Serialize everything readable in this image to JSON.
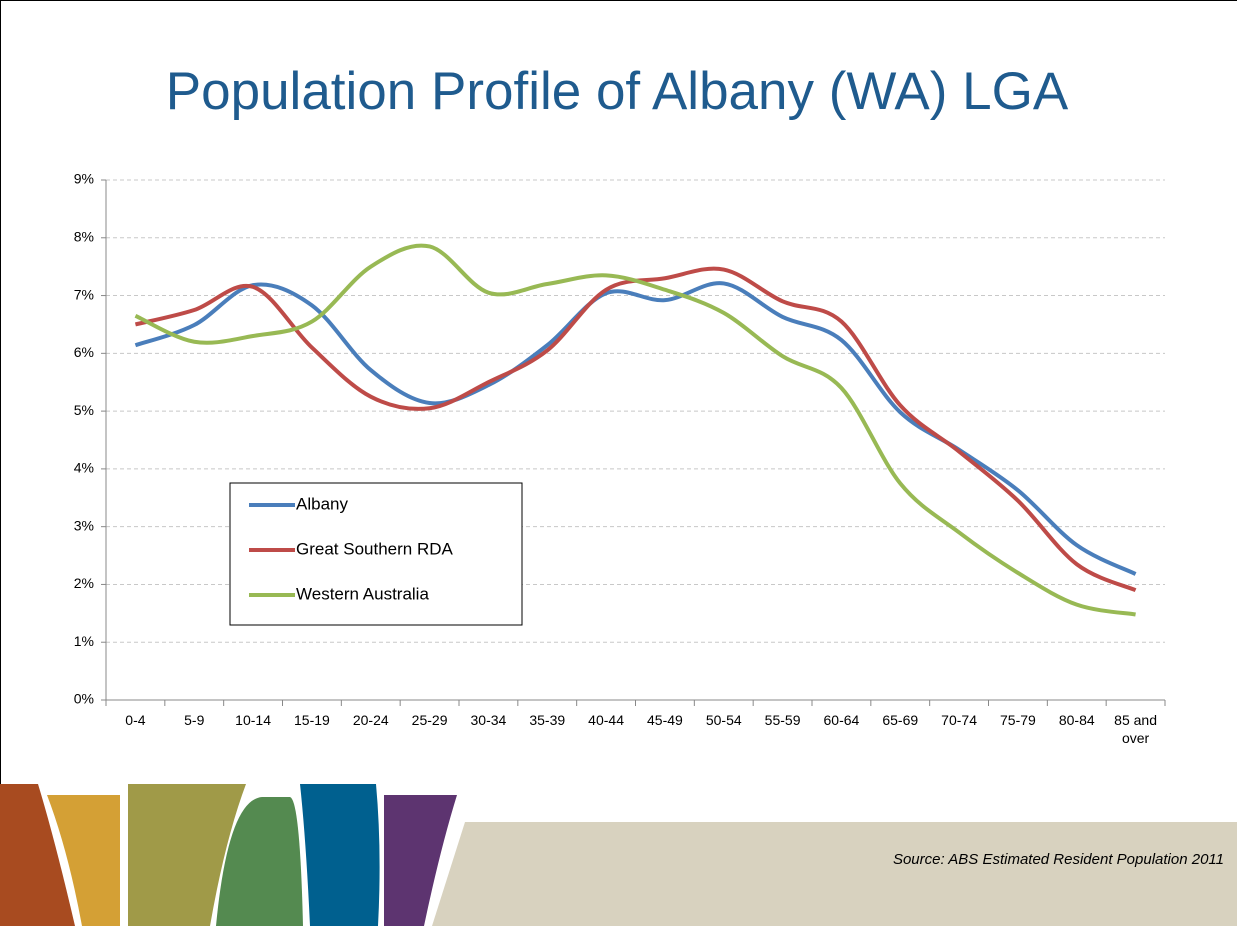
{
  "chart_data": {
    "type": "line",
    "title": "Population Profile of Albany (WA) LGA",
    "source": "Source: ABS Estimated Resident Population 2011",
    "categories": [
      "0-4",
      "5-9",
      "10-14",
      "15-19",
      "20-24",
      "25-29",
      "30-34",
      "35-39",
      "40-44",
      "45-49",
      "50-54",
      "55-59",
      "60-64",
      "65-69",
      "70-74",
      "75-79",
      "80-84",
      "85 and over"
    ],
    "series": [
      {
        "name": "Albany",
        "color": "#4a7ebb",
        "values": [
          6.14,
          6.49,
          7.18,
          6.83,
          5.71,
          5.14,
          5.45,
          6.14,
          7.04,
          6.92,
          7.21,
          6.63,
          6.23,
          4.98,
          4.33,
          3.63,
          2.68,
          2.18
        ]
      },
      {
        "name": "Great Southern RDA",
        "color": "#be4b48",
        "values": [
          6.5,
          6.75,
          7.15,
          6.1,
          5.25,
          5.05,
          5.5,
          6.05,
          7.1,
          7.3,
          7.45,
          6.9,
          6.55,
          5.1,
          4.3,
          3.45,
          2.35,
          1.9
        ]
      },
      {
        "name": "Western Australia",
        "color": "#98b954",
        "values": [
          6.65,
          6.2,
          6.3,
          6.55,
          7.5,
          7.85,
          7.05,
          7.2,
          7.35,
          7.1,
          6.7,
          5.95,
          5.4,
          3.75,
          2.9,
          2.2,
          1.65,
          1.48
        ]
      }
    ],
    "ylim": [
      0,
      9
    ],
    "yticks": [
      {
        "value": 0,
        "label": "0%"
      },
      {
        "value": 1,
        "label": "1%"
      },
      {
        "value": 2,
        "label": "2%"
      },
      {
        "value": 3,
        "label": "3%"
      },
      {
        "value": 4,
        "label": "4%"
      },
      {
        "value": 5,
        "label": "5%"
      },
      {
        "value": 6,
        "label": "6%"
      },
      {
        "value": 7,
        "label": "7%"
      },
      {
        "value": 8,
        "label": "8%"
      },
      {
        "value": 9,
        "label": "9%"
      }
    ],
    "grid": true,
    "smooth": true
  }
}
